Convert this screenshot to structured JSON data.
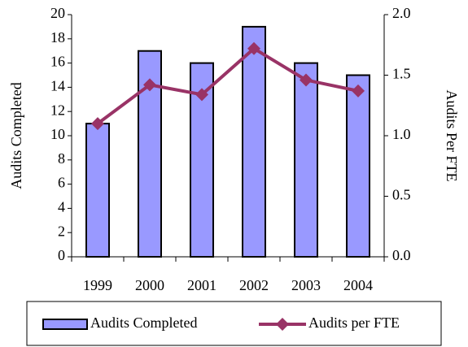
{
  "chart_data": {
    "type": "bar",
    "categories": [
      "1999",
      "2000",
      "2001",
      "2002",
      "2003",
      "2004"
    ],
    "series": [
      {
        "name": "Audits Completed",
        "type": "bar",
        "color": "#9999ff",
        "values": [
          11,
          17,
          16,
          19,
          16,
          15
        ]
      },
      {
        "name": "Audits per FTE",
        "type": "line",
        "axis": "y2",
        "color": "#993366",
        "values": [
          1.1,
          1.42,
          1.34,
          1.72,
          1.46,
          1.37
        ]
      }
    ],
    "ylabel": "Audits Completed",
    "y2label": "Audits Per FTE",
    "ylim": [
      0,
      20
    ],
    "yticks": [
      0,
      2,
      4,
      6,
      8,
      10,
      12,
      14,
      16,
      18,
      20
    ],
    "y2lim": [
      0,
      2
    ],
    "y2ticks": [
      {
        "value": 0,
        "label": "0.0"
      },
      0.5,
      {
        "value": 1,
        "label": "1.0"
      },
      1.5,
      {
        "value": 2,
        "label": "2.0"
      }
    ],
    "legend": "bottom"
  }
}
